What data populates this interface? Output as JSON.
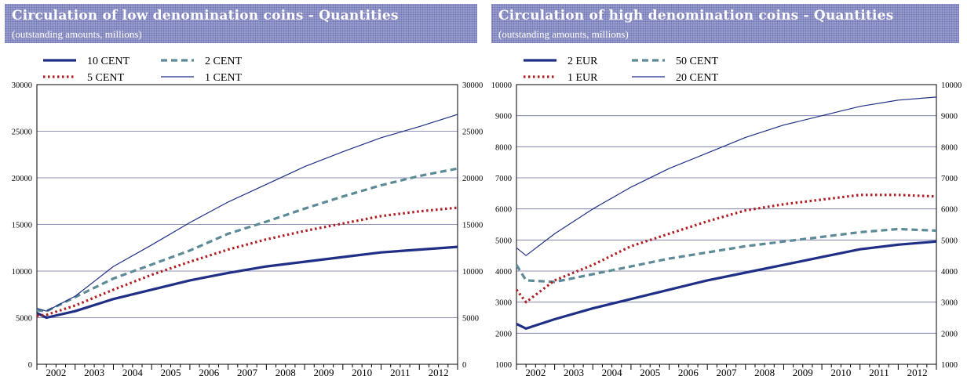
{
  "chart_data": [
    {
      "type": "line",
      "title": "Circulation of low denomination coins - Quantities",
      "subtitle": "(outstanding amounts, millions)",
      "ylim": [
        0,
        30000
      ],
      "yticks": [
        0,
        5000,
        10000,
        15000,
        20000,
        25000,
        30000
      ],
      "x_labels": [
        "2002",
        "2003",
        "2004",
        "2005",
        "2006",
        "2007",
        "2008",
        "2009",
        "2010",
        "2011",
        "2012"
      ],
      "xlim": [
        2002.0,
        2013.0
      ],
      "grid": true,
      "legend_position": "top",
      "series": [
        {
          "name": "10 CENT",
          "color": "#1f2f86",
          "style": "thick",
          "values": [
            [
              2002.0,
              5500
            ],
            [
              2002.25,
              5000
            ],
            [
              2003.0,
              5700
            ],
            [
              2004.0,
              7000
            ],
            [
              2005.0,
              8000
            ],
            [
              2006.0,
              9000
            ],
            [
              2007.0,
              9800
            ],
            [
              2008.0,
              10500
            ],
            [
              2009.0,
              11000
            ],
            [
              2010.0,
              11500
            ],
            [
              2011.0,
              12000
            ],
            [
              2012.0,
              12300
            ],
            [
              2013.0,
              12600
            ]
          ]
        },
        {
          "name": "2 CENT",
          "color": "#5c8a96",
          "style": "dashed",
          "values": [
            [
              2002.0,
              5800
            ],
            [
              2002.25,
              5700
            ],
            [
              2003.0,
              7200
            ],
            [
              2004.0,
              9200
            ],
            [
              2005.0,
              10700
            ],
            [
              2006.0,
              12200
            ],
            [
              2007.0,
              14000
            ],
            [
              2008.0,
              15300
            ],
            [
              2009.0,
              16700
            ],
            [
              2010.0,
              18000
            ],
            [
              2011.0,
              19200
            ],
            [
              2012.0,
              20200
            ],
            [
              2013.0,
              21000
            ]
          ]
        },
        {
          "name": "5 CENT",
          "color": "#b01e23",
          "style": "dotted",
          "values": [
            [
              2002.0,
              5200
            ],
            [
              2002.25,
              5300
            ],
            [
              2003.0,
              6300
            ],
            [
              2004.0,
              8000
            ],
            [
              2005.0,
              9600
            ],
            [
              2006.0,
              11000
            ],
            [
              2007.0,
              12300
            ],
            [
              2008.0,
              13400
            ],
            [
              2009.0,
              14300
            ],
            [
              2010.0,
              15100
            ],
            [
              2011.0,
              15900
            ],
            [
              2012.0,
              16400
            ],
            [
              2013.0,
              16800
            ]
          ]
        },
        {
          "name": "1 CENT",
          "color": "#1f2f86",
          "style": "thin",
          "values": [
            [
              2002.0,
              6000
            ],
            [
              2002.25,
              5700
            ],
            [
              2003.0,
              7300
            ],
            [
              2004.0,
              10500
            ],
            [
              2005.0,
              12800
            ],
            [
              2006.0,
              15200
            ],
            [
              2007.0,
              17400
            ],
            [
              2008.0,
              19300
            ],
            [
              2009.0,
              21200
            ],
            [
              2010.0,
              22800
            ],
            [
              2011.0,
              24300
            ],
            [
              2012.0,
              25500
            ],
            [
              2013.0,
              26800
            ]
          ]
        }
      ]
    },
    {
      "type": "line",
      "title": "Circulation of high denomination coins - Quantities",
      "subtitle": "(outstanding amounts, millions)",
      "ylim": [
        1000,
        10000
      ],
      "yticks": [
        1000,
        2000,
        3000,
        4000,
        5000,
        6000,
        7000,
        8000,
        9000,
        10000
      ],
      "x_labels": [
        "2002",
        "2003",
        "2004",
        "2005",
        "2006",
        "2007",
        "2008",
        "2009",
        "2010",
        "2011",
        "2012"
      ],
      "xlim": [
        2002.0,
        2013.0
      ],
      "grid": true,
      "legend_position": "top",
      "series": [
        {
          "name": "2 EUR",
          "color": "#1f2f86",
          "style": "thick",
          "values": [
            [
              2002.0,
              2300
            ],
            [
              2002.25,
              2150
            ],
            [
              2003.0,
              2450
            ],
            [
              2004.0,
              2800
            ],
            [
              2005.0,
              3100
            ],
            [
              2006.0,
              3400
            ],
            [
              2007.0,
              3700
            ],
            [
              2008.0,
              3950
            ],
            [
              2009.0,
              4200
            ],
            [
              2010.0,
              4450
            ],
            [
              2011.0,
              4700
            ],
            [
              2012.0,
              4850
            ],
            [
              2013.0,
              4950
            ]
          ]
        },
        {
          "name": "50 CENT",
          "color": "#5c8a96",
          "style": "dashed",
          "values": [
            [
              2002.0,
              4200
            ],
            [
              2002.25,
              3700
            ],
            [
              2003.0,
              3650
            ],
            [
              2004.0,
              3900
            ],
            [
              2005.0,
              4150
            ],
            [
              2006.0,
              4400
            ],
            [
              2007.0,
              4600
            ],
            [
              2008.0,
              4800
            ],
            [
              2009.0,
              4950
            ],
            [
              2010.0,
              5100
            ],
            [
              2011.0,
              5250
            ],
            [
              2012.0,
              5350
            ],
            [
              2013.0,
              5300
            ]
          ]
        },
        {
          "name": "1 EUR",
          "color": "#b01e23",
          "style": "dotted",
          "values": [
            [
              2002.0,
              3400
            ],
            [
              2002.25,
              3000
            ],
            [
              2003.0,
              3700
            ],
            [
              2004.0,
              4200
            ],
            [
              2005.0,
              4800
            ],
            [
              2006.0,
              5200
            ],
            [
              2007.0,
              5600
            ],
            [
              2008.0,
              5950
            ],
            [
              2009.0,
              6150
            ],
            [
              2010.0,
              6300
            ],
            [
              2011.0,
              6450
            ],
            [
              2012.0,
              6450
            ],
            [
              2013.0,
              6400
            ]
          ]
        },
        {
          "name": "20 CENT",
          "color": "#1f2f86",
          "style": "thin",
          "values": [
            [
              2002.0,
              4750
            ],
            [
              2002.25,
              4500
            ],
            [
              2003.0,
              5200
            ],
            [
              2004.0,
              6000
            ],
            [
              2005.0,
              6700
            ],
            [
              2006.0,
              7300
            ],
            [
              2007.0,
              7800
            ],
            [
              2008.0,
              8300
            ],
            [
              2009.0,
              8700
            ],
            [
              2010.0,
              9000
            ],
            [
              2011.0,
              9300
            ],
            [
              2012.0,
              9500
            ],
            [
              2013.0,
              9600
            ]
          ]
        }
      ]
    }
  ]
}
